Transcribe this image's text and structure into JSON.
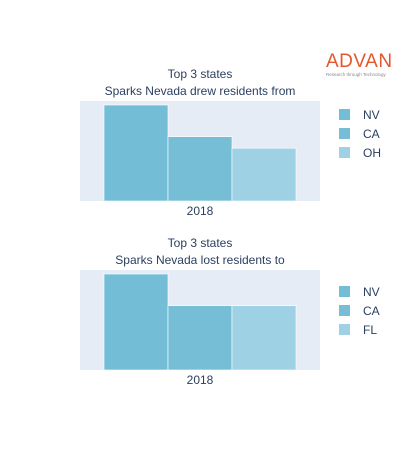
{
  "logo": {
    "name": "ADVAN",
    "tagline": "Research through Technology"
  },
  "colors": {
    "plot_bg": "#e5ecf6",
    "bar_nv": "#74bdd7",
    "bar_ca": "#76bed6",
    "bar_third": "#9dd1e3",
    "text": "#2a3f5f"
  },
  "chart_data": [
    {
      "type": "bar",
      "title_lines": [
        "Top 3 states",
        "Sparks Nevada drew residents from"
      ],
      "categories": [
        "2018"
      ],
      "series": [
        {
          "name": "NV",
          "values": [
            100
          ]
        },
        {
          "name": "CA",
          "values": [
            67
          ]
        },
        {
          "name": "OH",
          "values": [
            55
          ]
        }
      ],
      "ylim": [
        0,
        100
      ],
      "grid": false,
      "legend": "right"
    },
    {
      "type": "bar",
      "title_lines": [
        "Top 3 states",
        "Sparks Nevada lost residents to"
      ],
      "categories": [
        "2018"
      ],
      "series": [
        {
          "name": "NV",
          "values": [
            100
          ]
        },
        {
          "name": "CA",
          "values": [
            67
          ]
        },
        {
          "name": "FL",
          "values": [
            67
          ]
        }
      ],
      "ylim": [
        0,
        100
      ],
      "grid": false,
      "legend": "right"
    }
  ]
}
